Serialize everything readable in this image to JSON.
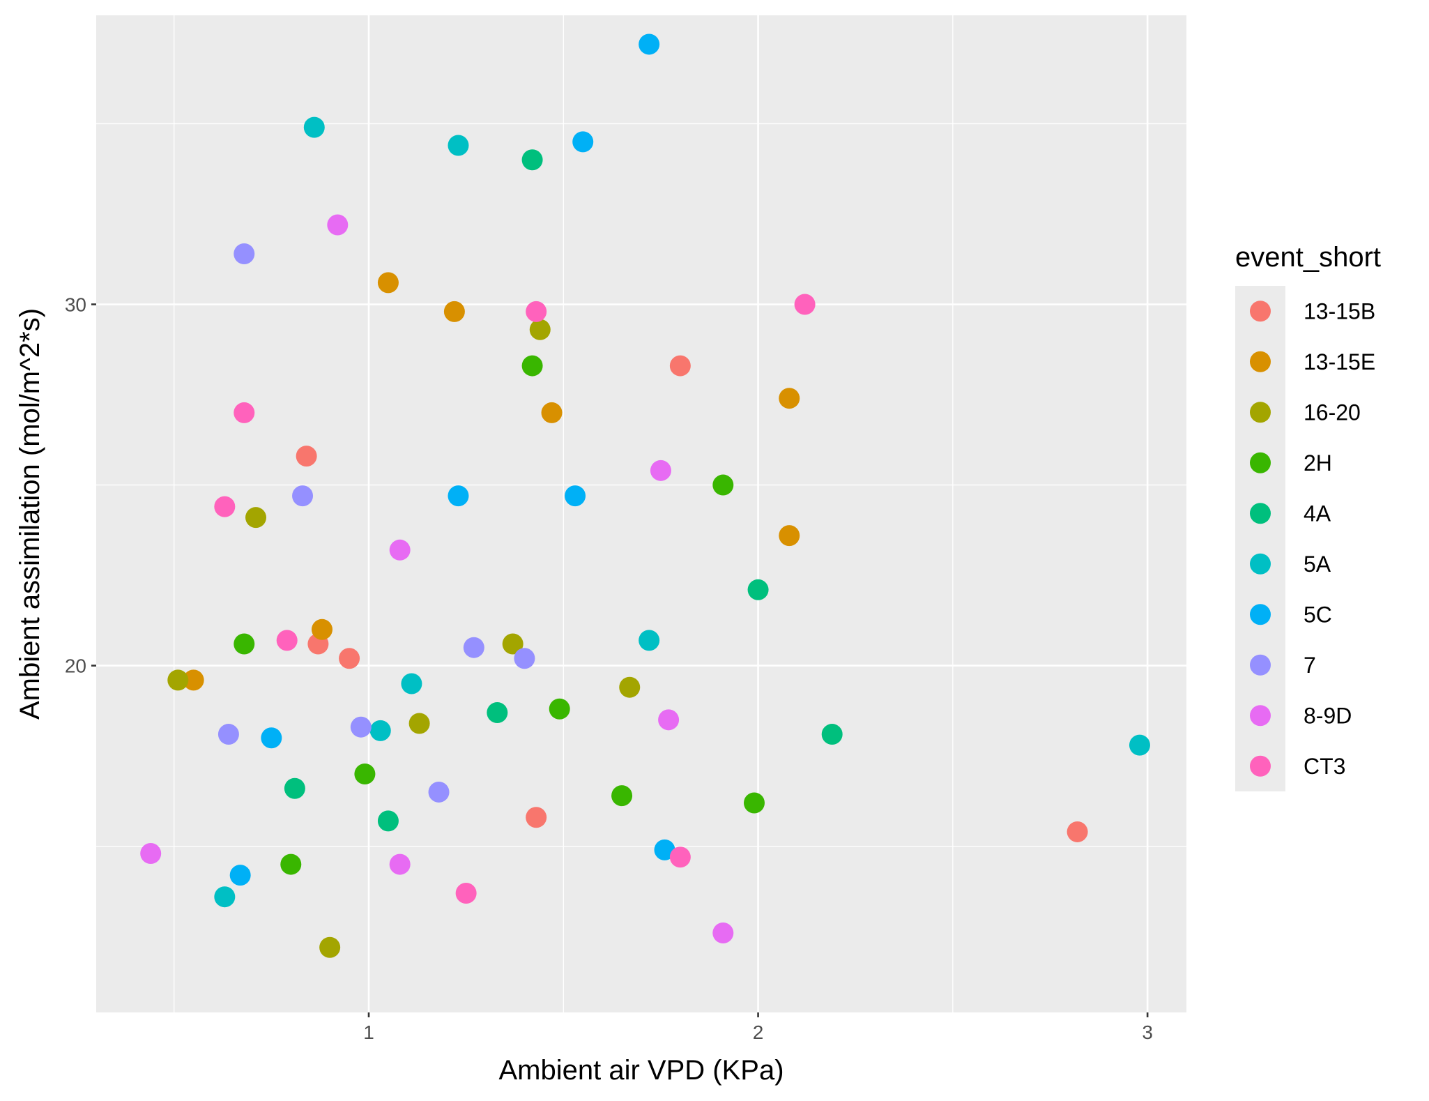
{
  "chart_data": {
    "type": "scatter",
    "title": "",
    "xlabel": "Ambient air VPD (KPa)",
    "ylabel": "Ambient assimilation (mol/m^2*s)",
    "xlim": [
      0.3,
      3.1
    ],
    "ylim": [
      10.4,
      38.0
    ],
    "x_ticks": [
      1,
      2,
      3
    ],
    "x_tick_labels": [
      "1",
      "2",
      "3"
    ],
    "x_minor_ticks": [
      0.5,
      1.5,
      2.5
    ],
    "y_ticks": [
      20,
      30
    ],
    "y_tick_labels": [
      "20",
      "30"
    ],
    "y_minor_ticks": [
      15,
      25,
      35
    ],
    "grid": true,
    "legend": {
      "title": "event_short",
      "position": "right"
    },
    "series": [
      {
        "name": "13-15B",
        "color": "#F8766D",
        "points": [
          [
            0.84,
            25.8
          ],
          [
            0.87,
            20.6
          ],
          [
            0.95,
            20.2
          ],
          [
            1.43,
            15.8
          ],
          [
            1.8,
            28.3
          ],
          [
            2.82,
            15.4
          ]
        ]
      },
      {
        "name": "13-15E",
        "color": "#D89000",
        "points": [
          [
            0.55,
            19.6
          ],
          [
            0.88,
            21.0
          ],
          [
            1.05,
            30.6
          ],
          [
            1.22,
            29.8
          ],
          [
            1.47,
            27.0
          ],
          [
            2.08,
            27.4
          ],
          [
            2.08,
            23.6
          ]
        ]
      },
      {
        "name": "16-20",
        "color": "#A3A500",
        "points": [
          [
            0.51,
            19.6
          ],
          [
            0.71,
            24.1
          ],
          [
            0.9,
            12.2
          ],
          [
            1.13,
            18.4
          ],
          [
            1.37,
            20.6
          ],
          [
            1.44,
            29.3
          ],
          [
            1.67,
            19.4
          ]
        ]
      },
      {
        "name": "2H",
        "color": "#39B600",
        "points": [
          [
            0.68,
            20.6
          ],
          [
            0.8,
            14.5
          ],
          [
            0.99,
            17.0
          ],
          [
            1.42,
            28.3
          ],
          [
            1.49,
            18.8
          ],
          [
            1.65,
            16.4
          ],
          [
            1.91,
            25.0
          ],
          [
            1.99,
            16.2
          ]
        ]
      },
      {
        "name": "4A",
        "color": "#00BF7D",
        "points": [
          [
            0.81,
            16.6
          ],
          [
            1.05,
            15.7
          ],
          [
            1.33,
            18.7
          ],
          [
            1.42,
            34.0
          ],
          [
            2.0,
            22.1
          ],
          [
            2.19,
            18.1
          ]
        ]
      },
      {
        "name": "5A",
        "color": "#00BFC4",
        "points": [
          [
            0.63,
            13.6
          ],
          [
            0.86,
            34.9
          ],
          [
            1.03,
            18.2
          ],
          [
            1.11,
            19.5
          ],
          [
            1.23,
            34.4
          ],
          [
            1.72,
            20.7
          ],
          [
            2.98,
            17.8
          ]
        ]
      },
      {
        "name": "5C",
        "color": "#00B0F6",
        "points": [
          [
            0.67,
            14.2
          ],
          [
            0.75,
            18.0
          ],
          [
            1.23,
            24.7
          ],
          [
            1.53,
            24.7
          ],
          [
            1.55,
            34.5
          ],
          [
            1.72,
            37.2
          ],
          [
            1.76,
            14.9
          ]
        ]
      },
      {
        "name": "7",
        "color": "#9590FF",
        "points": [
          [
            0.64,
            18.1
          ],
          [
            0.68,
            31.4
          ],
          [
            0.83,
            24.7
          ],
          [
            0.98,
            18.3
          ],
          [
            1.18,
            16.5
          ],
          [
            1.27,
            20.5
          ],
          [
            1.4,
            20.2
          ]
        ]
      },
      {
        "name": "8-9D",
        "color": "#E76BF3",
        "points": [
          [
            0.44,
            14.8
          ],
          [
            0.92,
            32.2
          ],
          [
            1.08,
            23.2
          ],
          [
            1.08,
            14.5
          ],
          [
            1.75,
            25.4
          ],
          [
            1.77,
            18.5
          ],
          [
            1.91,
            12.6
          ]
        ]
      },
      {
        "name": "CT3",
        "color": "#FF62BC",
        "points": [
          [
            0.63,
            24.4
          ],
          [
            0.68,
            27.0
          ],
          [
            0.79,
            20.7
          ],
          [
            1.25,
            13.7
          ],
          [
            1.43,
            29.8
          ],
          [
            1.8,
            14.7
          ],
          [
            2.12,
            30.0
          ]
        ]
      }
    ]
  }
}
